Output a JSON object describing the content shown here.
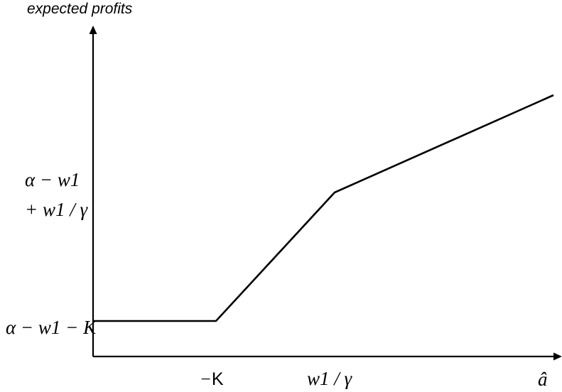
{
  "chart_data": {
    "type": "line",
    "ylabel": "expected profits",
    "series": [
      {
        "points": [
          "-K",
          "-K",
          "w1/γ",
          "â"
        ]
      }
    ],
    "x_ticks": [
      {
        "id": "negK",
        "text_prefix": "−",
        "text_main": "K"
      },
      {
        "id": "w1g",
        "text": "w1 / γ"
      },
      {
        "id": "ahat",
        "text": "â"
      }
    ],
    "y_ticks": [
      {
        "id": "low",
        "text": "α − w1 − K"
      },
      {
        "id": "kink_line1",
        "text": "α − w1"
      },
      {
        "id": "kink_line2",
        "text": "+ w1 / γ"
      }
    ]
  }
}
